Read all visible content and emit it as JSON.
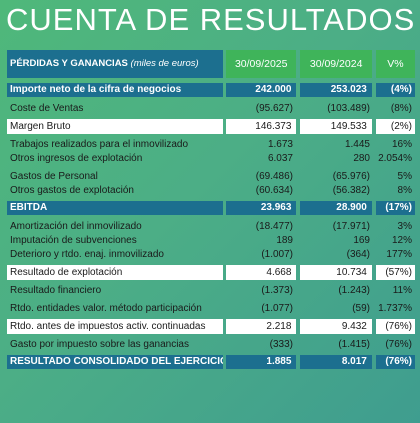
{
  "title": "CUENTA DE RESULTADOS",
  "header": {
    "label": "PÉRDIDAS Y GANANCIAS",
    "unit": "(miles de euros)",
    "col1": "30/09/2025",
    "col2": "30/09/2024",
    "col3": "V%"
  },
  "rows": [
    {
      "label": "Importe neto de la cifra de negocios",
      "v1": "242.000",
      "v2": "253.023",
      "v3": "(4%)"
    },
    {
      "label": "Coste de Ventas",
      "v1": "(95.627)",
      "v2": "(103.489)",
      "v3": "(8%)"
    },
    {
      "label": "Margen Bruto",
      "v1": "146.373",
      "v2": "149.533",
      "v3": "(2%)"
    },
    {
      "label": "Trabajos realizados para el inmovilizado",
      "v1": "1.673",
      "v2": "1.445",
      "v3": "16%"
    },
    {
      "label": "Otros ingresos de explotación",
      "v1": "6.037",
      "v2": "280",
      "v3": "2.054%"
    },
    {
      "label": "Gastos de Personal",
      "v1": "(69.486)",
      "v2": "(65.976)",
      "v3": "5%"
    },
    {
      "label": "Otros gastos de explotación",
      "v1": "(60.634)",
      "v2": "(56.382)",
      "v3": "8%"
    },
    {
      "label": "EBITDA",
      "v1": "23.963",
      "v2": "28.900",
      "v3": "(17%)"
    },
    {
      "label": "Amortización del inmovilizado",
      "v1": "(18.477)",
      "v2": "(17.971)",
      "v3": "3%"
    },
    {
      "label": "Imputación de subvenciones",
      "v1": "189",
      "v2": "169",
      "v3": "12%"
    },
    {
      "label": "Deterioro y rtdo. enaj. inmovilizado",
      "v1": "(1.007)",
      "v2": "(364)",
      "v3": "177%"
    },
    {
      "label": "Resultado de explotación",
      "v1": "4.668",
      "v2": "10.734",
      "v3": "(57%)"
    },
    {
      "label": "Resultado financiero",
      "v1": "(1.373)",
      "v2": "(1.243)",
      "v3": "11%"
    },
    {
      "label": "Rtdo. entidades valor. método  participación",
      "v1": "(1.077)",
      "v2": "(59)",
      "v3": "1.737%"
    },
    {
      "label": "Rtdo. antes de impuestos activ. continuadas",
      "v1": "2.218",
      "v2": "9.432",
      "v3": "(76%)"
    },
    {
      "label": "Gasto por impuesto sobre las ganancias",
      "v1": "(333)",
      "v2": "(1.415)",
      "v3": "(76%)"
    },
    {
      "label": "RESULTADO CONSOLIDADO DEL EJERCICIO",
      "v1": "1.885",
      "v2": "8.017",
      "v3": "(76%)"
    }
  ]
}
